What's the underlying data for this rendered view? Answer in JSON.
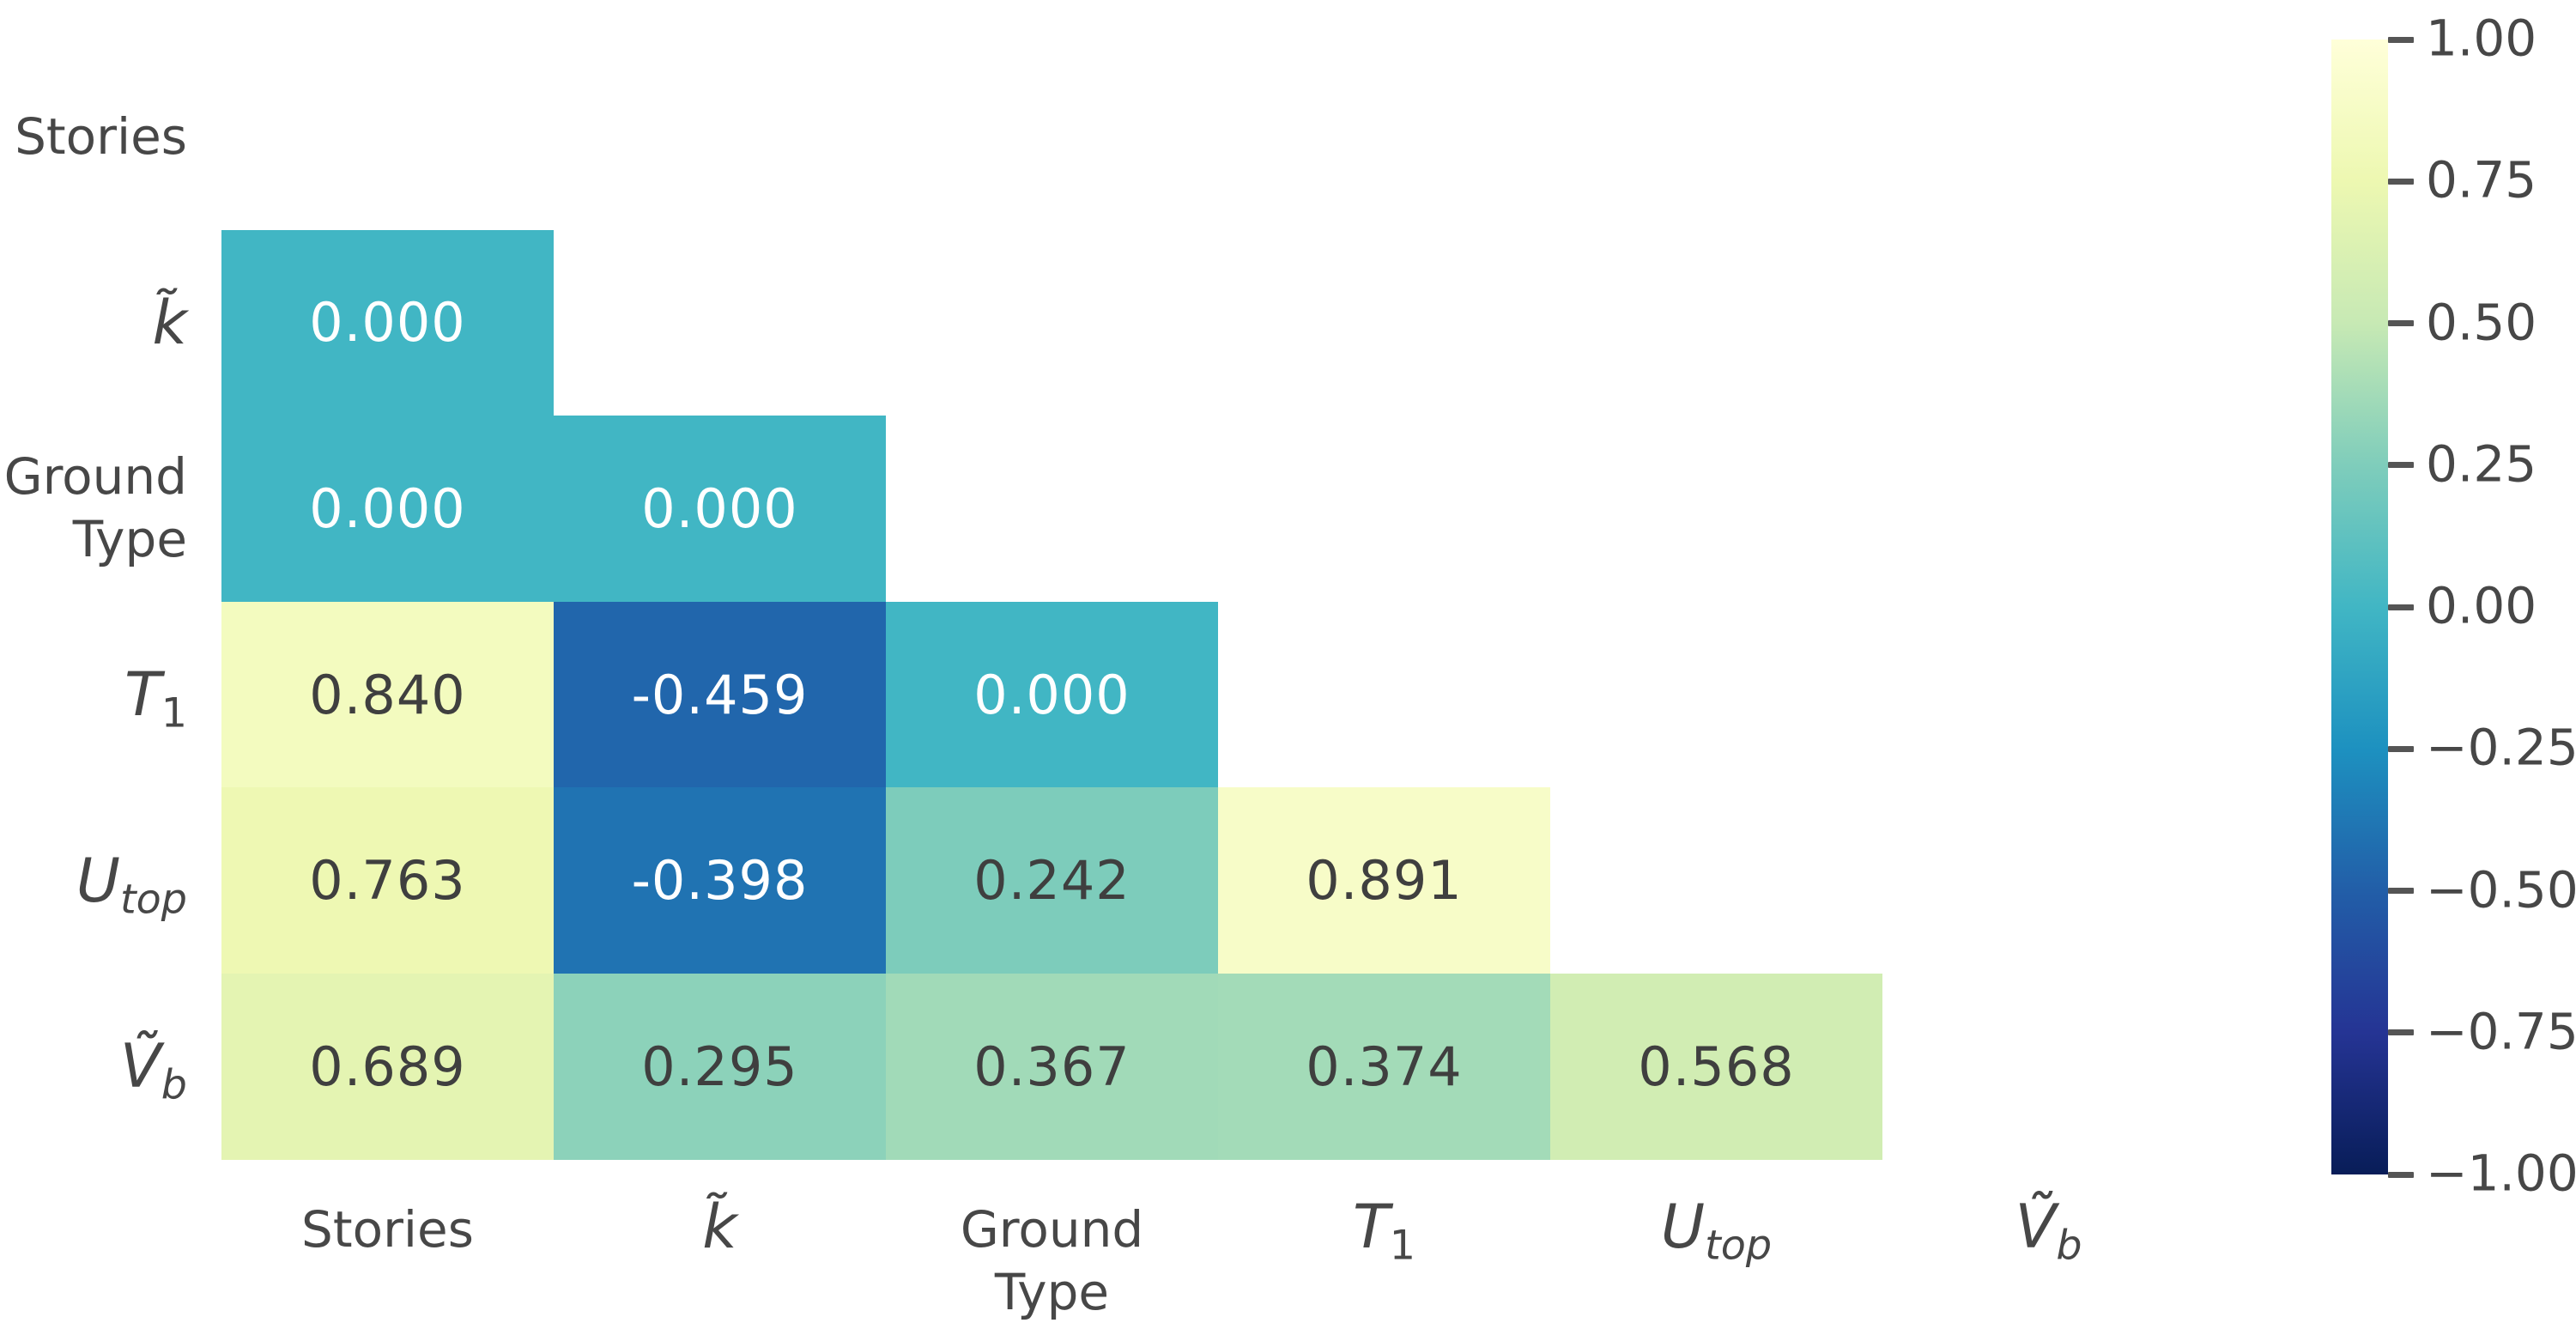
{
  "chart_data": {
    "type": "heatmap",
    "title": "",
    "subtitle": "",
    "mask": "upper-triangle-and-diagonal-hidden",
    "legend_position": "right-colorbar",
    "grid": "off",
    "variables": [
      {
        "name": "stories",
        "italic": false,
        "label_lines": [
          "Stories"
        ]
      },
      {
        "name": "k-tilde",
        "italic": true,
        "base": "k̃",
        "sub": ""
      },
      {
        "name": "ground-type",
        "italic": false,
        "label_lines": [
          "Ground",
          "Type"
        ]
      },
      {
        "name": "t1",
        "italic": true,
        "base": "T",
        "sub": "1",
        "sub_italic": false
      },
      {
        "name": "u-top",
        "italic": true,
        "base": "U",
        "sub": "top",
        "sub_italic": true
      },
      {
        "name": "v-b-tilde",
        "italic": true,
        "base": "Ṽ",
        "sub": "b",
        "sub_italic": true
      }
    ],
    "cells": [
      {
        "row": 1,
        "col": 0,
        "value": 0.0,
        "text": "0.000",
        "text_tone": "light"
      },
      {
        "row": 2,
        "col": 0,
        "value": 0.0,
        "text": "0.000",
        "text_tone": "light"
      },
      {
        "row": 2,
        "col": 1,
        "value": 0.0,
        "text": "0.000",
        "text_tone": "light"
      },
      {
        "row": 3,
        "col": 0,
        "value": 0.84,
        "text": "0.840",
        "text_tone": "dark"
      },
      {
        "row": 3,
        "col": 1,
        "value": -0.459,
        "text": "-0.459",
        "text_tone": "light"
      },
      {
        "row": 3,
        "col": 2,
        "value": 0.0,
        "text": "0.000",
        "text_tone": "light"
      },
      {
        "row": 4,
        "col": 0,
        "value": 0.763,
        "text": "0.763",
        "text_tone": "dark"
      },
      {
        "row": 4,
        "col": 1,
        "value": -0.398,
        "text": "-0.398",
        "text_tone": "light"
      },
      {
        "row": 4,
        "col": 2,
        "value": 0.242,
        "text": "0.242",
        "text_tone": "dark"
      },
      {
        "row": 4,
        "col": 3,
        "value": 0.891,
        "text": "0.891",
        "text_tone": "dark"
      },
      {
        "row": 5,
        "col": 0,
        "value": 0.689,
        "text": "0.689",
        "text_tone": "dark"
      },
      {
        "row": 5,
        "col": 1,
        "value": 0.295,
        "text": "0.295",
        "text_tone": "dark"
      },
      {
        "row": 5,
        "col": 2,
        "value": 0.367,
        "text": "0.367",
        "text_tone": "dark"
      },
      {
        "row": 5,
        "col": 3,
        "value": 0.374,
        "text": "0.374",
        "text_tone": "dark"
      },
      {
        "row": 5,
        "col": 4,
        "value": 0.568,
        "text": "0.568",
        "text_tone": "dark"
      }
    ],
    "vmin": -1.0,
    "vmax": 1.0,
    "colormap": {
      "name": "YlGnBu_r",
      "stops_low_to_high": [
        "#081d58",
        "#253494",
        "#225ea8",
        "#1d91c0",
        "#41b6c4",
        "#7fcdbb",
        "#c7e9b4",
        "#edf8b1",
        "#ffffd9"
      ]
    },
    "colorbar": {
      "tick_labels": [
        "1.00",
        "0.75",
        "0.50",
        "0.25",
        "0.00",
        "−0.25",
        "−0.50",
        "−0.75",
        "−1.00"
      ]
    },
    "colors": {
      "annotation_light": "#ffffff",
      "annotation_dark": "#3f3f3f",
      "axis_label": "#474747",
      "tick_mark": "#555555",
      "background": "#ffffff"
    }
  }
}
